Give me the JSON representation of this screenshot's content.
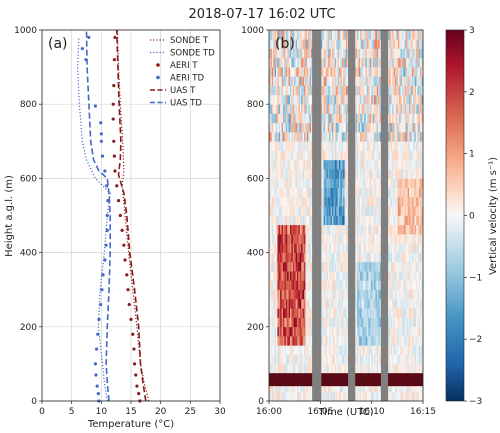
{
  "figure_title": "2018-07-17 16:02 UTC",
  "chart_data": [
    {
      "panel": "(a)",
      "type": "line",
      "xlabel": "Temperature (°C)",
      "ylabel": "Height a.g.l. (m)",
      "xlim": [
        0,
        30
      ],
      "ylim": [
        0,
        1000
      ],
      "xticks": [
        0,
        5,
        10,
        15,
        20,
        25,
        30
      ],
      "yticks": [
        0,
        200,
        400,
        600,
        800,
        1000
      ],
      "grid": true,
      "legend_position": "top-right",
      "series": [
        {
          "name": "SONDE T",
          "style": "dotted",
          "color": "#8b1a1a",
          "points": [
            [
              18.0,
              0
            ],
            [
              17.2,
              50
            ],
            [
              16.6,
              100
            ],
            [
              16.0,
              200
            ],
            [
              15.3,
              300
            ],
            [
              14.6,
              400
            ],
            [
              14.0,
              500
            ],
            [
              13.5,
              580
            ],
            [
              13.8,
              620
            ],
            [
              13.6,
              700
            ],
            [
              13.2,
              800
            ],
            [
              12.9,
              900
            ],
            [
              12.7,
              1000
            ]
          ]
        },
        {
          "name": "SONDE TD",
          "style": "dotted",
          "color": "#4169c9",
          "points": [
            [
              11.0,
              0
            ],
            [
              10.5,
              50
            ],
            [
              10.2,
              100
            ],
            [
              9.5,
              200
            ],
            [
              9.8,
              300
            ],
            [
              10.5,
              400
            ],
            [
              11.0,
              500
            ],
            [
              11.5,
              560
            ],
            [
              9.0,
              600
            ],
            [
              7.5,
              650
            ],
            [
              6.8,
              700
            ],
            [
              6.3,
              800
            ],
            [
              6.0,
              900
            ],
            [
              6.2,
              980
            ]
          ]
        },
        {
          "name": "AERI T",
          "style": "markers",
          "color": "#8b1a1a",
          "points": [
            [
              16.5,
              0
            ],
            [
              16.3,
              20
            ],
            [
              16.0,
              40
            ],
            [
              15.8,
              70
            ],
            [
              15.6,
              100
            ],
            [
              15.5,
              140
            ],
            [
              15.3,
              180
            ],
            [
              15.0,
              220
            ],
            [
              14.7,
              260
            ],
            [
              14.5,
              300
            ],
            [
              14.3,
              340
            ],
            [
              14.0,
              380
            ],
            [
              13.8,
              420
            ],
            [
              13.5,
              460
            ],
            [
              13.2,
              500
            ],
            [
              12.9,
              540
            ],
            [
              12.6,
              580
            ],
            [
              12.3,
              620
            ],
            [
              12.2,
              660
            ],
            [
              12.1,
              700
            ],
            [
              12.0,
              760
            ],
            [
              12.0,
              800
            ],
            [
              12.1,
              850
            ],
            [
              12.2,
              920
            ],
            [
              12.3,
              980
            ]
          ]
        },
        {
          "name": "AERI TD",
          "style": "markers",
          "color": "#4169c9",
          "points": [
            [
              9.6,
              0
            ],
            [
              9.5,
              20
            ],
            [
              9.3,
              40
            ],
            [
              9.1,
              70
            ],
            [
              9.0,
              100
            ],
            [
              9.2,
              140
            ],
            [
              9.4,
              180
            ],
            [
              9.6,
              220
            ],
            [
              9.9,
              260
            ],
            [
              10.1,
              300
            ],
            [
              10.3,
              340
            ],
            [
              10.6,
              380
            ],
            [
              10.8,
              420
            ],
            [
              11.0,
              460
            ],
            [
              11.0,
              500
            ],
            [
              11.1,
              540
            ],
            [
              10.9,
              580
            ],
            [
              10.6,
              620
            ],
            [
              10.2,
              660
            ],
            [
              10.0,
              700
            ],
            [
              10.0,
              720
            ],
            [
              9.9,
              750
            ],
            [
              9.0,
              795
            ],
            [
              7.4,
              920
            ],
            [
              6.8,
              950
            ],
            [
              7.9,
              980
            ]
          ]
        },
        {
          "name": "UAS T",
          "style": "dashed",
          "color": "#8b1a1a",
          "points": [
            [
              17.5,
              0
            ],
            [
              17.0,
              50
            ],
            [
              16.6,
              100
            ],
            [
              16.3,
              200
            ],
            [
              15.6,
              300
            ],
            [
              14.8,
              400
            ],
            [
              14.3,
              500
            ],
            [
              13.8,
              560
            ],
            [
              12.9,
              610
            ],
            [
              13.2,
              650
            ],
            [
              13.3,
              700
            ],
            [
              13.0,
              800
            ],
            [
              12.8,
              900
            ],
            [
              12.6,
              1000
            ]
          ]
        },
        {
          "name": "UAS TD",
          "style": "dashed",
          "color": "#4169c9",
          "points": [
            [
              11.3,
              0
            ],
            [
              11.0,
              50
            ],
            [
              10.8,
              100
            ],
            [
              11.0,
              200
            ],
            [
              11.3,
              300
            ],
            [
              11.5,
              400
            ],
            [
              11.5,
              500
            ],
            [
              11.3,
              560
            ],
            [
              11.0,
              600
            ],
            [
              9.6,
              620
            ],
            [
              8.7,
              650
            ],
            [
              8.2,
              700
            ],
            [
              7.9,
              800
            ],
            [
              7.6,
              900
            ],
            [
              7.5,
              1000
            ]
          ]
        }
      ]
    },
    {
      "panel": "(b)",
      "type": "heatmap",
      "xlabel": "Time (UTC)",
      "ylabel": "",
      "xlim": [
        "16:00",
        "16:15"
      ],
      "ylim": [
        0,
        1000
      ],
      "xticks": [
        "16:00",
        "16:05",
        "16:10",
        "16:15"
      ],
      "yticks": [
        0,
        200,
        400,
        600,
        800,
        1000
      ],
      "colorbar": {
        "label": "Vertical velocity (m s⁻¹)",
        "range": [
          -3,
          3
        ],
        "ticks": [
          -3,
          -2,
          -1,
          0,
          1,
          2,
          3
        ],
        "colormap": "RdBu_r"
      },
      "missing_data_minutes": [
        [
          4.2,
          5.1
        ],
        [
          7.7,
          8.4
        ],
        [
          10.9,
          11.6
        ]
      ],
      "near_surface_band_m": [
        40,
        75
      ],
      "features": [
        {
          "start_min": 0.8,
          "end_min": 3.6,
          "height_m": [
            150,
            480
          ],
          "value": 2.2
        },
        {
          "start_min": 5.3,
          "end_min": 7.3,
          "height_m": [
            470,
            660
          ],
          "value": -1.8
        },
        {
          "start_min": 8.6,
          "end_min": 11.0,
          "height_m": [
            150,
            380
          ],
          "value": -0.9
        },
        {
          "start_min": 12.5,
          "end_min": 15.0,
          "height_m": [
            450,
            600
          ],
          "value": 0.8
        }
      ]
    }
  ]
}
